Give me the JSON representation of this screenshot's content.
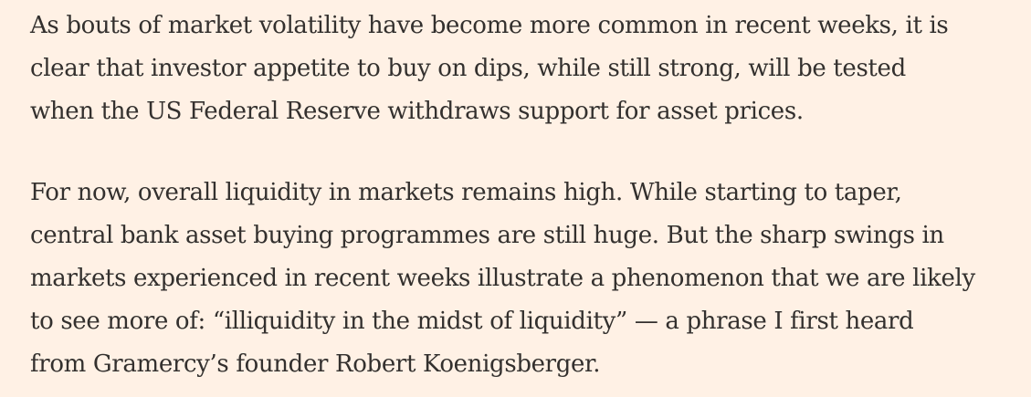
{
  "article": {
    "paragraphs": [
      {
        "lines": [
          "As bouts of market volatility have become more common in recent weeks, it is",
          "clear that investor appetite to buy on dips, while still strong, will be tested",
          "when the US Federal Reserve withdraws support for asset prices."
        ]
      },
      {
        "lines": [
          "For now, overall liquidity in markets remains high. While starting to taper,",
          "central bank asset buying programmes are still huge. But the sharp swings in",
          "markets experienced in recent weeks illustrate a phenomenon that we are likely",
          "to see more of: “illiquidity in the midst of liquidity” — a phrase I first heard",
          "from Gramercy’s founder Robert Koenigsberger."
        ]
      }
    ]
  }
}
